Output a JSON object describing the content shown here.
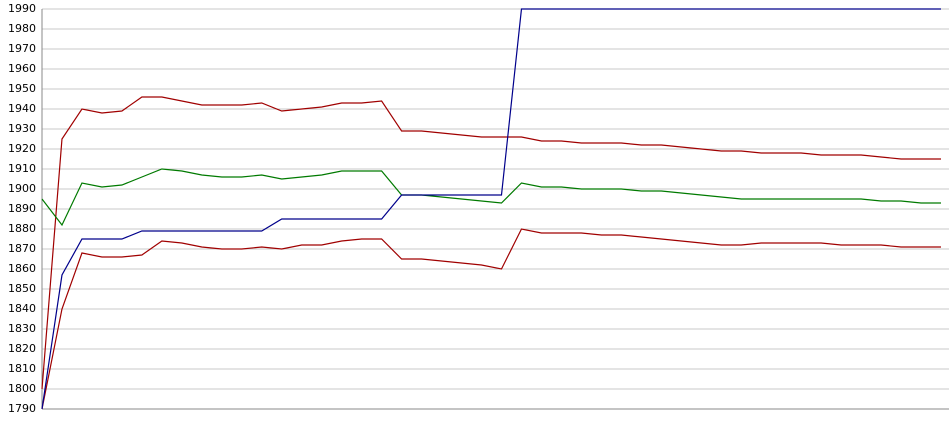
{
  "chart_data": {
    "type": "line",
    "categories": [
      null,
      null,
      null,
      null,
      null,
      null,
      null,
      null,
      null,
      null,
      null,
      null,
      null,
      null,
      null,
      null,
      null,
      null,
      null,
      null,
      null,
      null,
      null,
      null,
      null,
      null,
      null,
      null,
      null,
      null,
      null,
      null,
      null,
      null,
      null,
      null,
      null,
      null,
      null,
      null,
      null,
      null,
      null,
      null,
      null,
      null
    ],
    "series": [
      {
        "color": "#a00000",
        "values": [
          1800,
          1925,
          1940,
          1938,
          1939,
          1946,
          1946,
          1944,
          1942,
          1942,
          1942,
          1943,
          1939,
          1940,
          1941,
          1943,
          1943,
          1944,
          1929,
          1929,
          1928,
          1927,
          1926,
          1926,
          1926,
          1924,
          1924,
          1923,
          1923,
          1923,
          1922,
          1922,
          1921,
          1920,
          1919,
          1919,
          1918,
          1918,
          1918,
          1917,
          1917,
          1917,
          1916,
          1915,
          1915,
          1915
        ]
      },
      {
        "color": "#007a00",
        "values": [
          1895,
          1882,
          1903,
          1901,
          1902,
          1906,
          1910,
          1909,
          1907,
          1906,
          1906,
          1907,
          1905,
          1906,
          1907,
          1909,
          1909,
          1909,
          1897,
          1897,
          1896,
          1895,
          1894,
          1893,
          1903,
          1901,
          1901,
          1900,
          1900,
          1900,
          1899,
          1899,
          1898,
          1897,
          1896,
          1895,
          1895,
          1895,
          1895,
          1895,
          1895,
          1895,
          1894,
          1894,
          1893,
          1893
        ]
      },
      {
        "color": "#a00000",
        "values": [
          1790,
          1840,
          1868,
          1866,
          1866,
          1867,
          1874,
          1873,
          1871,
          1870,
          1870,
          1871,
          1870,
          1872,
          1872,
          1874,
          1875,
          1875,
          1865,
          1865,
          1864,
          1863,
          1862,
          1860,
          1880,
          1878,
          1878,
          1878,
          1877,
          1877,
          1876,
          1875,
          1874,
          1873,
          1872,
          1872,
          1873,
          1873,
          1873,
          1873,
          1872,
          1872,
          1872,
          1871,
          1871,
          1871
        ]
      },
      {
        "color": "#00008b",
        "values": [
          1790,
          1857,
          1875,
          1875,
          1875,
          1879,
          1879,
          1879,
          1879,
          1879,
          1879,
          1879,
          1885,
          1885,
          1885,
          1885,
          1885,
          1885,
          1897,
          1897,
          1897,
          1897,
          1897,
          1897,
          1990,
          1990,
          1990,
          1990,
          1990,
          1990,
          1990,
          1990,
          1990,
          1990,
          1990,
          1990,
          1990,
          1990,
          1990,
          1990,
          1990,
          1990,
          1990,
          1990,
          1990,
          1990
        ]
      }
    ],
    "ylim": [
      1790,
      1990
    ],
    "yticks": [
      1790,
      1800,
      1810,
      1820,
      1830,
      1840,
      1850,
      1860,
      1870,
      1880,
      1890,
      1900,
      1910,
      1920,
      1930,
      1940,
      1950,
      1960,
      1970,
      1980,
      1990
    ],
    "grid": true
  }
}
